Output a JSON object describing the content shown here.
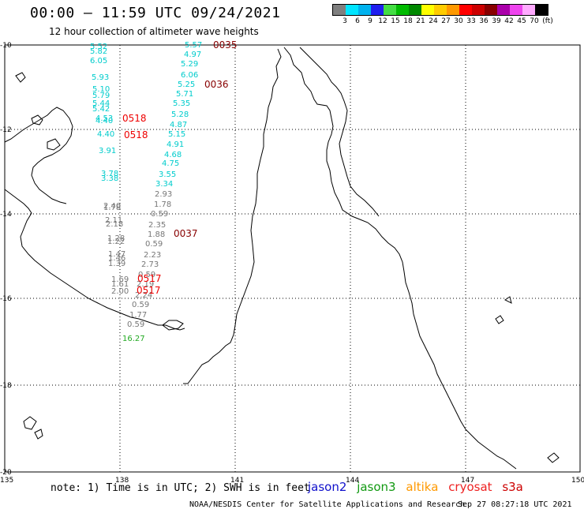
{
  "header": {
    "title": "00:00 — 11:59 UTC 09/24/2021",
    "subtitle": "12 hour collection of altimeter wave heights"
  },
  "legend": {
    "unit": "(ft)",
    "labels": [
      "3",
      "6",
      "9",
      "12",
      "15",
      "18",
      "21",
      "24",
      "27",
      "30",
      "33",
      "36",
      "39",
      "42",
      "45",
      "70"
    ],
    "colors": [
      "#7f7f7f",
      "#00e5ff",
      "#00b2ee",
      "#1f1fee",
      "#44dd44",
      "#00bb00",
      "#008800",
      "#ffff00",
      "#ffcc00",
      "#ff9900",
      "#ff0000",
      "#cc0000",
      "#880000",
      "#aa00aa",
      "#ee44ee",
      "#ffaaff",
      "#000000"
    ]
  },
  "map": {
    "lon_ticks": [
      "135",
      "138",
      "141",
      "144",
      "147",
      "150"
    ],
    "lat_ticks": [
      "-10",
      "-12",
      "-14",
      "-16",
      "-18",
      "-20"
    ]
  },
  "observations": [
    {
      "v": "5.52",
      "c": "#00cccc"
    },
    {
      "v": "5.82",
      "c": "#00cccc"
    },
    {
      "v": "6.05",
      "c": "#00cccc"
    },
    {
      "v": "5.93",
      "c": "#00cccc"
    },
    {
      "v": "5.10",
      "c": "#00cccc"
    },
    {
      "v": "5.79",
      "c": "#00cccc"
    },
    {
      "v": "5.44",
      "c": "#00cccc"
    },
    {
      "v": "5.42",
      "c": "#00cccc"
    },
    {
      "v": "4.53",
      "c": "#00cccc"
    },
    {
      "v": "4.40",
      "c": "#00cccc"
    },
    {
      "v": "4.40",
      "c": "#00cccc"
    },
    {
      "v": "3.91",
      "c": "#00cccc"
    },
    {
      "v": "3.78",
      "c": "#00cccc"
    },
    {
      "v": "3.38",
      "c": "#00cccc"
    },
    {
      "v": "2.40",
      "c": "#777777"
    },
    {
      "v": "1.78",
      "c": "#777777"
    },
    {
      "v": "2.11",
      "c": "#777777"
    },
    {
      "v": "2.18",
      "c": "#777777"
    },
    {
      "v": "1.28",
      "c": "#777777"
    },
    {
      "v": "1.22",
      "c": "#777777"
    },
    {
      "v": "1.47",
      "c": "#777777"
    },
    {
      "v": "1.46",
      "c": "#777777"
    },
    {
      "v": "1.39",
      "c": "#777777"
    },
    {
      "v": "1.69",
      "c": "#777777"
    },
    {
      "v": "1.61",
      "c": "#777777"
    },
    {
      "v": "2.00",
      "c": "#777777"
    },
    {
      "v": "5.57",
      "c": "#00cccc"
    },
    {
      "v": "4.97",
      "c": "#00cccc"
    },
    {
      "v": "5.29",
      "c": "#00cccc"
    },
    {
      "v": "6.06",
      "c": "#00cccc"
    },
    {
      "v": "5.25",
      "c": "#00cccc"
    },
    {
      "v": "5.71",
      "c": "#00cccc"
    },
    {
      "v": "5.35",
      "c": "#00cccc"
    },
    {
      "v": "5.28",
      "c": "#00cccc"
    },
    {
      "v": "4.87",
      "c": "#00cccc"
    },
    {
      "v": "5.15",
      "c": "#00cccc"
    },
    {
      "v": "4.91",
      "c": "#00cccc"
    },
    {
      "v": "4.68",
      "c": "#00cccc"
    },
    {
      "v": "4.75",
      "c": "#00cccc"
    },
    {
      "v": "3.55",
      "c": "#00cccc"
    },
    {
      "v": "3.34",
      "c": "#00cccc"
    },
    {
      "v": "2.93",
      "c": "#777777"
    },
    {
      "v": "1.78",
      "c": "#777777"
    },
    {
      "v": "0.59",
      "c": "#777777"
    },
    {
      "v": "2.35",
      "c": "#777777"
    },
    {
      "v": "1.88",
      "c": "#777777"
    },
    {
      "v": "0.59",
      "c": "#777777"
    },
    {
      "v": "2.23",
      "c": "#777777"
    },
    {
      "v": "2.73",
      "c": "#777777"
    },
    {
      "v": "0.59",
      "c": "#777777"
    },
    {
      "v": "2.19",
      "c": "#777777"
    },
    {
      "v": "2.24",
      "c": "#777777"
    },
    {
      "v": "0.59",
      "c": "#777777"
    },
    {
      "v": "1.77",
      "c": "#777777"
    },
    {
      "v": "0.59",
      "c": "#777777"
    },
    {
      "v": "16.27",
      "c": "#22aa22"
    }
  ],
  "pass_times": [
    {
      "t": "0035",
      "c": "#880000"
    },
    {
      "t": "0036",
      "c": "#880000"
    },
    {
      "t": "0518",
      "c": "#ee0000"
    },
    {
      "t": "0518",
      "c": "#ee0000"
    },
    {
      "t": "0037",
      "c": "#880000"
    },
    {
      "t": "0517",
      "c": "#ee0000"
    },
    {
      "t": "0517",
      "c": "#ee0000"
    }
  ],
  "footer": {
    "note": "note: 1) Time is in UTC; 2) SWH is in feet",
    "satellites": [
      {
        "name": "jason2",
        "color": "#1111cc"
      },
      {
        "name": "jason3",
        "color": "#119911"
      },
      {
        "name": "altika",
        "color": "#ff9900"
      },
      {
        "name": "cryosat",
        "color": "#ee2222"
      },
      {
        "name": "s3a",
        "color": "#cc0000"
      }
    ],
    "credit": "NOAA/NESDIS Center for Satellite Applications and Research",
    "timestamp": "Sep 27 08:27:18 UTC 2021"
  }
}
